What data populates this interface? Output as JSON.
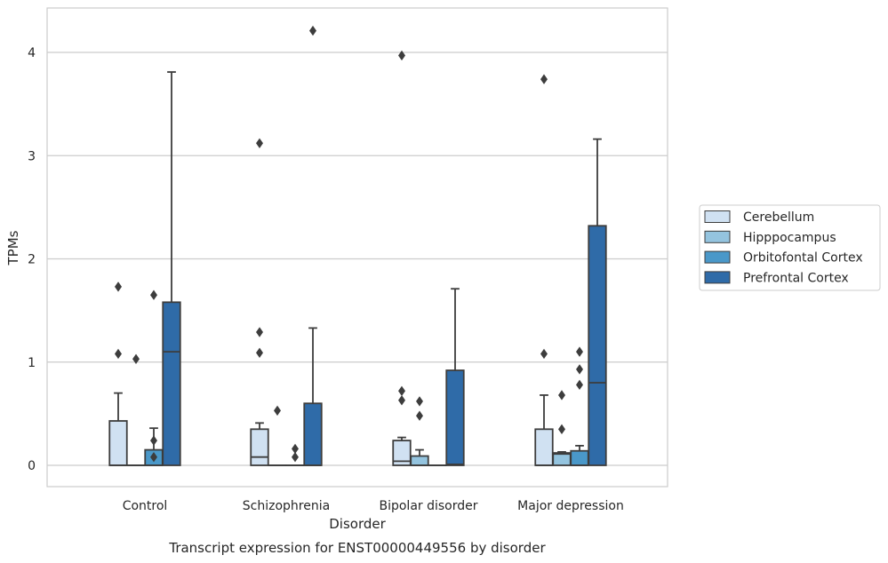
{
  "chart_data": {
    "type": "boxplot",
    "xlabel": "Disorder",
    "ylabel": "TPMs",
    "caption": "Transcript expression for ENST00000449556 by disorder",
    "ylim": [
      -0.2,
      4.35
    ],
    "yticks": [
      0,
      1,
      2,
      3,
      4
    ],
    "grid": "horizontal",
    "legend_position": "right",
    "categories": [
      "Control",
      "Schizophrenia",
      "Bipolar disorder",
      "Major depression"
    ],
    "series": [
      {
        "name": "Cerebellum",
        "color": "#d0e1f2",
        "boxes": [
          {
            "whisker_low": 0,
            "q1": 0,
            "median": 0,
            "q3": 0.43,
            "whisker_high": 0.7,
            "outliers": [
              1.08,
              1.73
            ]
          },
          {
            "whisker_low": 0,
            "q1": 0,
            "median": 0.08,
            "q3": 0.35,
            "whisker_high": 0.41,
            "outliers": [
              1.09,
              1.29,
              3.12
            ]
          },
          {
            "whisker_low": 0,
            "q1": 0,
            "median": 0.04,
            "q3": 0.24,
            "whisker_high": 0.27,
            "outliers": [
              0.63,
              0.72,
              3.97
            ]
          },
          {
            "whisker_low": 0,
            "q1": 0,
            "median": 0,
            "q3": 0.35,
            "whisker_high": 0.68,
            "outliers": [
              1.08,
              3.74
            ]
          }
        ]
      },
      {
        "name": "Hipppocampus",
        "color": "#94c4df",
        "boxes": [
          {
            "whisker_low": 0,
            "q1": 0,
            "median": 0,
            "q3": 0,
            "whisker_high": 0,
            "outliers": [
              1.03
            ]
          },
          {
            "whisker_low": 0,
            "q1": 0,
            "median": 0,
            "q3": 0,
            "whisker_high": 0,
            "outliers": [
              0.53
            ]
          },
          {
            "whisker_low": 0,
            "q1": 0,
            "median": 0,
            "q3": 0.09,
            "whisker_high": 0.15,
            "outliers": [
              0.48,
              0.62
            ]
          },
          {
            "whisker_low": 0,
            "q1": 0,
            "median": 0.11,
            "q3": 0.12,
            "whisker_high": 0.13,
            "outliers": [
              0.35,
              0.68
            ]
          }
        ]
      },
      {
        "name": "Orbitofontal Cortex",
        "color": "#4a98c9",
        "boxes": [
          {
            "whisker_low": 0,
            "q1": 0,
            "median": 0,
            "q3": 0.15,
            "whisker_high": 0.36,
            "outliers": [
              0.08,
              0.24,
              1.65
            ]
          },
          {
            "whisker_low": 0,
            "q1": 0,
            "median": 0,
            "q3": 0,
            "whisker_high": 0,
            "outliers": [
              0.08,
              0.16
            ]
          },
          {
            "whisker_low": 0,
            "q1": 0,
            "median": 0,
            "q3": 0,
            "whisker_high": 0,
            "outliers": []
          },
          {
            "whisker_low": 0,
            "q1": 0,
            "median": 0,
            "q3": 0.14,
            "whisker_high": 0.19,
            "outliers": [
              0.78,
              0.93,
              1.1
            ]
          }
        ]
      },
      {
        "name": "Prefrontal Cortex",
        "color": "#2f6ba8",
        "boxes": [
          {
            "whisker_low": 0,
            "q1": 0,
            "median": 1.1,
            "q3": 1.58,
            "whisker_high": 3.81,
            "outliers": []
          },
          {
            "whisker_low": 0,
            "q1": 0,
            "median": 0,
            "q3": 0.6,
            "whisker_high": 1.33,
            "outliers": [
              4.21
            ]
          },
          {
            "whisker_low": 0,
            "q1": 0,
            "median": 0.01,
            "q3": 0.92,
            "whisker_high": 1.71,
            "outliers": []
          },
          {
            "whisker_low": 0,
            "q1": 0,
            "median": 0.8,
            "q3": 2.32,
            "whisker_high": 3.16,
            "outliers": []
          }
        ]
      }
    ]
  }
}
